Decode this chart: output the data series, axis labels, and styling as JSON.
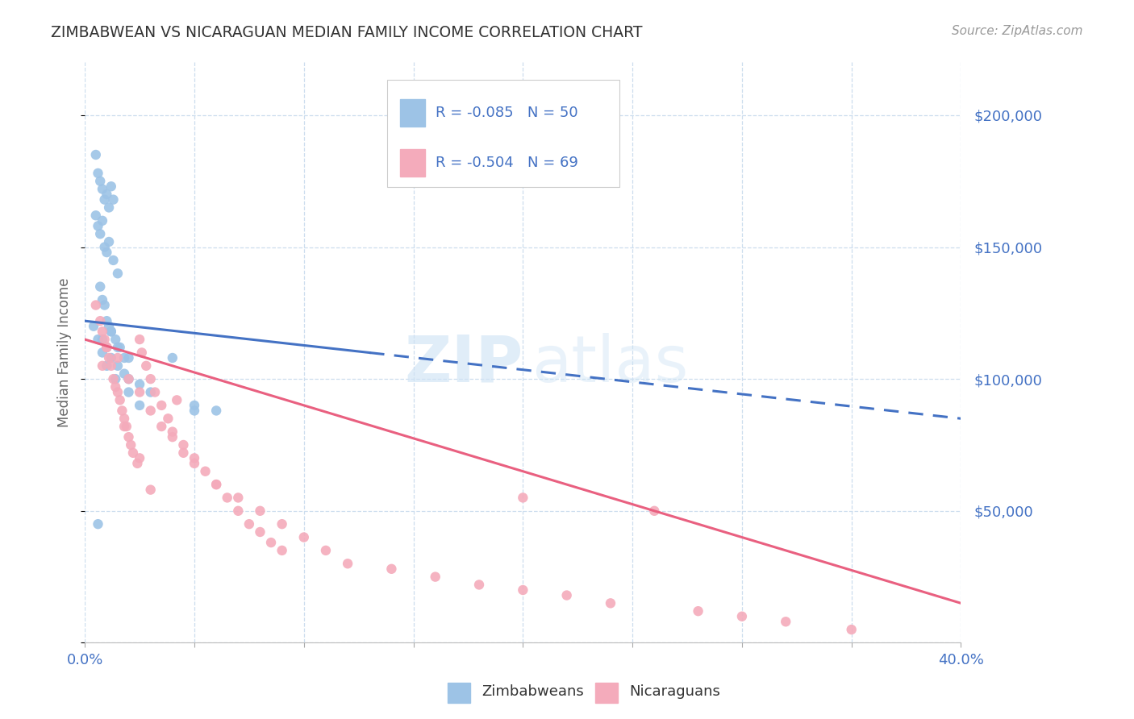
{
  "title": "ZIMBABWEAN VS NICARAGUAN MEDIAN FAMILY INCOME CORRELATION CHART",
  "source_text": "Source: ZipAtlas.com",
  "ylabel": "Median Family Income",
  "xlim": [
    0.0,
    0.4
  ],
  "ylim": [
    0,
    220000
  ],
  "yticks": [
    0,
    50000,
    100000,
    150000,
    200000
  ],
  "xticks": [
    0.0,
    0.05,
    0.1,
    0.15,
    0.2,
    0.25,
    0.3,
    0.35,
    0.4
  ],
  "color_zim": "#9DC3E6",
  "color_nic": "#F4ABBB",
  "color_zim_line": "#4472C4",
  "color_nic_line": "#E96080",
  "color_axis_labels": "#4472C4",
  "color_title": "#404040",
  "color_grid": "#CCCCCC",
  "zim_line_x0": 0.0,
  "zim_line_x1": 0.4,
  "zim_line_y0": 122000,
  "zim_line_y1": 85000,
  "zim_line_solid_end": 0.13,
  "nic_line_x0": 0.0,
  "nic_line_x1": 0.4,
  "nic_line_y0": 115000,
  "nic_line_y1": 15000,
  "zim_x": [
    0.005,
    0.006,
    0.007,
    0.008,
    0.009,
    0.01,
    0.011,
    0.012,
    0.013,
    0.005,
    0.006,
    0.007,
    0.008,
    0.009,
    0.01,
    0.011,
    0.013,
    0.015,
    0.007,
    0.008,
    0.009,
    0.01,
    0.011,
    0.012,
    0.014,
    0.016,
    0.018,
    0.008,
    0.01,
    0.012,
    0.015,
    0.018,
    0.02,
    0.025,
    0.03,
    0.04,
    0.05,
    0.06,
    0.004,
    0.006,
    0.008,
    0.01,
    0.014,
    0.02,
    0.025,
    0.012,
    0.015,
    0.02,
    0.006,
    0.05
  ],
  "zim_y": [
    185000,
    178000,
    175000,
    172000,
    168000,
    170000,
    165000,
    173000,
    168000,
    162000,
    158000,
    155000,
    160000,
    150000,
    148000,
    152000,
    145000,
    140000,
    135000,
    130000,
    128000,
    122000,
    120000,
    118000,
    115000,
    112000,
    108000,
    115000,
    112000,
    108000,
    105000,
    102000,
    100000,
    98000,
    95000,
    108000,
    90000,
    88000,
    120000,
    115000,
    110000,
    105000,
    100000,
    95000,
    90000,
    118000,
    112000,
    108000,
    45000,
    88000
  ],
  "nic_x": [
    0.005,
    0.007,
    0.008,
    0.009,
    0.01,
    0.011,
    0.012,
    0.013,
    0.014,
    0.015,
    0.016,
    0.017,
    0.018,
    0.019,
    0.02,
    0.021,
    0.022,
    0.024,
    0.025,
    0.026,
    0.028,
    0.03,
    0.032,
    0.035,
    0.038,
    0.04,
    0.042,
    0.045,
    0.05,
    0.055,
    0.06,
    0.065,
    0.07,
    0.075,
    0.08,
    0.085,
    0.09,
    0.01,
    0.015,
    0.02,
    0.025,
    0.03,
    0.035,
    0.04,
    0.045,
    0.05,
    0.06,
    0.07,
    0.08,
    0.09,
    0.1,
    0.11,
    0.12,
    0.14,
    0.16,
    0.18,
    0.2,
    0.22,
    0.24,
    0.28,
    0.3,
    0.32,
    0.35,
    0.008,
    0.018,
    0.025,
    0.03,
    0.2,
    0.26
  ],
  "nic_y": [
    128000,
    122000,
    118000,
    115000,
    112000,
    108000,
    105000,
    100000,
    97000,
    95000,
    92000,
    88000,
    85000,
    82000,
    78000,
    75000,
    72000,
    68000,
    115000,
    110000,
    105000,
    100000,
    95000,
    90000,
    85000,
    80000,
    92000,
    75000,
    70000,
    65000,
    60000,
    55000,
    50000,
    45000,
    42000,
    38000,
    35000,
    112000,
    108000,
    100000,
    95000,
    88000,
    82000,
    78000,
    72000,
    68000,
    60000,
    55000,
    50000,
    45000,
    40000,
    35000,
    30000,
    28000,
    25000,
    22000,
    20000,
    18000,
    15000,
    12000,
    10000,
    8000,
    5000,
    105000,
    82000,
    70000,
    58000,
    55000,
    50000
  ]
}
